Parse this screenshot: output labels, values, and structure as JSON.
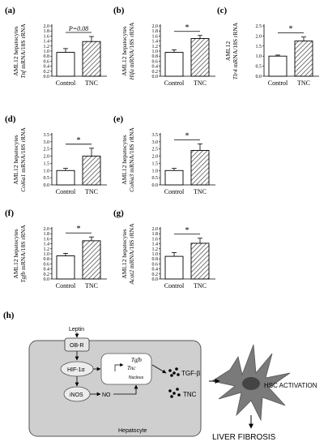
{
  "panels": [
    {
      "id": "a",
      "letter": "(a)",
      "ylabel_top": "AML12 hepatocytes",
      "ylabel_gene": "Tnf",
      "ylabel_rest": " mRNA/18S rRNA",
      "chart_data": {
        "type": "bar",
        "categories": [
          "Control",
          "TNC"
        ],
        "values": [
          0.95,
          1.38
        ],
        "errors": [
          0.15,
          0.2
        ],
        "ylim": [
          0,
          2.0
        ],
        "yticks": [
          "0.0",
          "0.2",
          "0.4",
          "0.6",
          "0.8",
          "1.0",
          "1.2",
          "1.4",
          "1.6",
          "1.8",
          "2.0"
        ],
        "tick_step": 0.2,
        "significance": "P=0.08",
        "significance_style": "italic"
      }
    },
    {
      "id": "b",
      "letter": "(b)",
      "ylabel_top": "AML12 hepatocytes",
      "ylabel_gene": "Hifa",
      "ylabel_rest": " mRNA/18S rRNA",
      "chart_data": {
        "type": "bar",
        "categories": [
          "Control",
          "TNC"
        ],
        "values": [
          0.95,
          1.5
        ],
        "errors": [
          0.1,
          0.12
        ],
        "ylim": [
          0,
          2.0
        ],
        "yticks": [
          "0.0",
          "0.2",
          "0.4",
          "0.6",
          "0.8",
          "1.0",
          "1.2",
          "1.4",
          "1.6",
          "1.8",
          "2.0"
        ],
        "tick_step": 0.2,
        "significance": "*",
        "significance_style": "normal"
      }
    },
    {
      "id": "c",
      "letter": "(c)",
      "ylabel_top": "AML12",
      "ylabel_gene": "Tlr4",
      "ylabel_rest": " mRNA/18S rRNA",
      "chart_data": {
        "type": "bar",
        "categories": [
          "Control",
          "TNC"
        ],
        "values": [
          1.0,
          1.75
        ],
        "errors": [
          0.05,
          0.2
        ],
        "ylim": [
          0,
          2.5
        ],
        "yticks": [
          "0.0",
          "0.5",
          "1.0",
          "1.5",
          "2.0",
          "2.5"
        ],
        "tick_step": 0.5,
        "significance": "*",
        "significance_style": "normal"
      }
    },
    {
      "id": "d",
      "letter": "(d)",
      "ylabel_top": "AML12 hepatocytes",
      "ylabel_gene": "Col6a1",
      "ylabel_rest": " mRNA/18S rRNA",
      "chart_data": {
        "type": "bar",
        "categories": [
          "Control",
          "TNC"
        ],
        "values": [
          1.0,
          2.0
        ],
        "errors": [
          0.15,
          0.55
        ],
        "ylim": [
          0,
          3.5
        ],
        "yticks": [
          "0.0",
          "0.5",
          "1.0",
          "1.5",
          "2.0",
          "2.5",
          "3.0",
          "3.5"
        ],
        "tick_step": 0.5,
        "significance": "*",
        "significance_style": "normal"
      }
    },
    {
      "id": "e",
      "letter": "(e)",
      "ylabel_top": "AML12 hepatocytes",
      "ylabel_gene": "Col6a3",
      "ylabel_rest": " mRNA/18S rRNA",
      "chart_data": {
        "type": "bar",
        "categories": [
          "Control",
          "TNC"
        ],
        "values": [
          1.0,
          2.4
        ],
        "errors": [
          0.15,
          0.45
        ],
        "ylim": [
          0,
          3.5
        ],
        "yticks": [
          "0.0",
          "0.5",
          "1.0",
          "1.5",
          "2.0",
          "2.5",
          "3.0",
          "3.5"
        ],
        "tick_step": 0.5,
        "significance": "*",
        "significance_style": "normal"
      }
    },
    {
      "id": "f",
      "letter": "(f)",
      "ylabel_top": "AML12 hepatocytes",
      "ylabel_gene": "Tgfb",
      "ylabel_rest": " mRNA/18S rRNA",
      "chart_data": {
        "type": "bar",
        "categories": [
          "Control",
          "TNC"
        ],
        "values": [
          0.92,
          1.52
        ],
        "errors": [
          0.1,
          0.15
        ],
        "ylim": [
          0,
          2.0
        ],
        "yticks": [
          "0.0",
          "0.2",
          "0.4",
          "0.6",
          "0.8",
          "1.0",
          "1.2",
          "1.4",
          "1.6",
          "1.8",
          "2.0"
        ],
        "tick_step": 0.2,
        "significance": "*",
        "significance_style": "normal"
      }
    },
    {
      "id": "g",
      "letter": "(g)",
      "ylabel_top": "AML12 hepatocytes",
      "ylabel_gene": "Acat2",
      "ylabel_rest": " mRNA/18S rRNA",
      "chart_data": {
        "type": "bar",
        "categories": [
          "Control",
          "TNC"
        ],
        "values": [
          0.9,
          1.42
        ],
        "errors": [
          0.15,
          0.2
        ],
        "ylim": [
          0,
          2.0
        ],
        "yticks": [
          "0.0",
          "0.2",
          "0.4",
          "0.6",
          "0.8",
          "1.0",
          "1.2",
          "1.4",
          "1.6",
          "1.8",
          "2.0"
        ],
        "tick_step": 0.2,
        "significance": "*",
        "significance_style": "normal"
      }
    }
  ],
  "diagram": {
    "letter": "(h)",
    "leptin": "Leptin",
    "obr": "OB-R",
    "hif": "HIF-1α",
    "inos": "iNOS",
    "no": "NO",
    "tgfb_gene": "Tgfb",
    "tnc_gene": "Tnc",
    "nucleus": "Nucleus",
    "hepatocyte": "Hepatocyte",
    "tgf_beta": "TGF-β",
    "tnc": "TNC",
    "hsc": "HSC ACTIVATION",
    "fibrosis": "LIVER FIBROSIS"
  },
  "colors": {
    "control_fill": "#ffffff",
    "tnc_hatch": "#555555",
    "cell_fill": "#cfcfcf",
    "hsc_fill": "#7a7a7a"
  }
}
